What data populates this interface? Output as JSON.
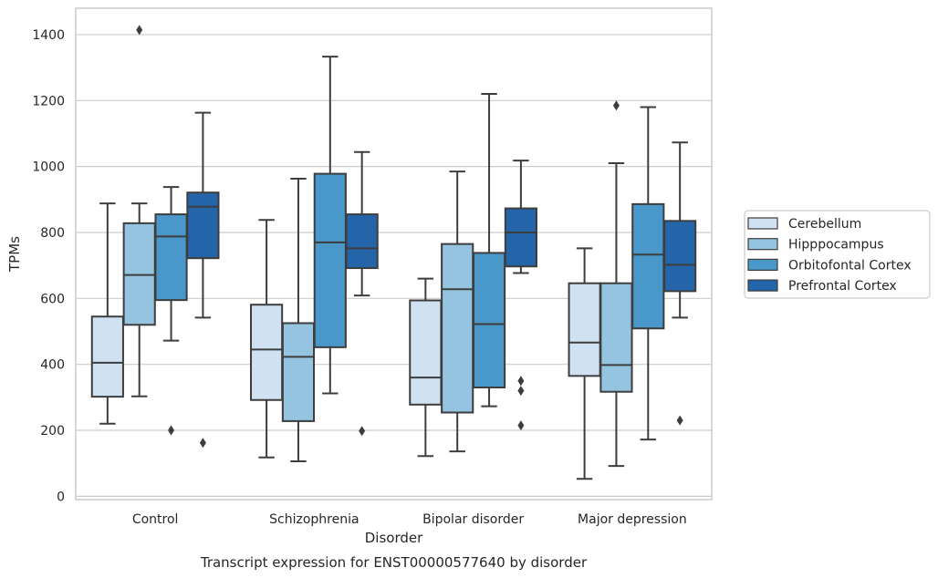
{
  "chart_data": {
    "type": "box",
    "title": "",
    "caption": "Transcript expression for ENST00000577640 by disorder",
    "xlabel": "Disorder",
    "ylabel": "TPMs",
    "ylim": [
      -10,
      1480
    ],
    "yticks": [
      0,
      200,
      400,
      600,
      800,
      1000,
      1200,
      1400
    ],
    "grid": "horizontal",
    "legend_position": "right",
    "categories": [
      "Control",
      "Schizophrenia",
      "Bipolar disorder",
      "Major depression"
    ],
    "series": [
      {
        "name": "Cerebellum",
        "color": "#d0e1f2",
        "boxes": [
          {
            "whisker_low": 220,
            "q1": 302,
            "median": 405,
            "q3": 545,
            "whisker_high": 888,
            "outliers": []
          },
          {
            "whisker_low": 118,
            "q1": 292,
            "median": 445,
            "q3": 581,
            "whisker_high": 838,
            "outliers": []
          },
          {
            "whisker_low": 122,
            "q1": 278,
            "median": 360,
            "q3": 594,
            "whisker_high": 660,
            "outliers": []
          },
          {
            "whisker_low": 53,
            "q1": 365,
            "median": 466,
            "q3": 646,
            "whisker_high": 752,
            "outliers": []
          }
        ]
      },
      {
        "name": "Hipppocampus",
        "color": "#94c4df",
        "boxes": [
          {
            "whisker_low": 303,
            "q1": 520,
            "median": 671,
            "q3": 828,
            "whisker_high": 888,
            "outliers": [
              1414
            ]
          },
          {
            "whisker_low": 106,
            "q1": 228,
            "median": 423,
            "q3": 525,
            "whisker_high": 963,
            "outliers": []
          },
          {
            "whisker_low": 136,
            "q1": 254,
            "median": 628,
            "q3": 765,
            "whisker_high": 985,
            "outliers": []
          },
          {
            "whisker_low": 92,
            "q1": 317,
            "median": 398,
            "q3": 646,
            "whisker_high": 1010,
            "outliers": [
              1185
            ]
          }
        ]
      },
      {
        "name": "Orbitofontal Cortex",
        "color": "#4a98c9",
        "boxes": [
          {
            "whisker_low": 472,
            "q1": 595,
            "median": 788,
            "q3": 855,
            "whisker_high": 938,
            "outliers": [
              200
            ]
          },
          {
            "whisker_low": 312,
            "q1": 452,
            "median": 770,
            "q3": 978,
            "whisker_high": 1333,
            "outliers": []
          },
          {
            "whisker_low": 273,
            "q1": 330,
            "median": 522,
            "q3": 738,
            "whisker_high": 1220,
            "outliers": []
          },
          {
            "whisker_low": 172,
            "q1": 509,
            "median": 733,
            "q3": 886,
            "whisker_high": 1180,
            "outliers": []
          }
        ]
      },
      {
        "name": "Prefrontal Cortex",
        "color": "#2464a8",
        "boxes": [
          {
            "whisker_low": 542,
            "q1": 722,
            "median": 878,
            "q3": 921,
            "whisker_high": 1163,
            "outliers": [
              162
            ]
          },
          {
            "whisker_low": 609,
            "q1": 692,
            "median": 752,
            "q3": 855,
            "whisker_high": 1044,
            "outliers": [
              198
            ]
          },
          {
            "whisker_low": 677,
            "q1": 697,
            "median": 800,
            "q3": 873,
            "whisker_high": 1018,
            "outliers": [
              350,
              320,
              215
            ]
          },
          {
            "whisker_low": 542,
            "q1": 622,
            "median": 702,
            "q3": 835,
            "whisker_high": 1073,
            "outliers": [
              230
            ]
          }
        ]
      }
    ]
  }
}
